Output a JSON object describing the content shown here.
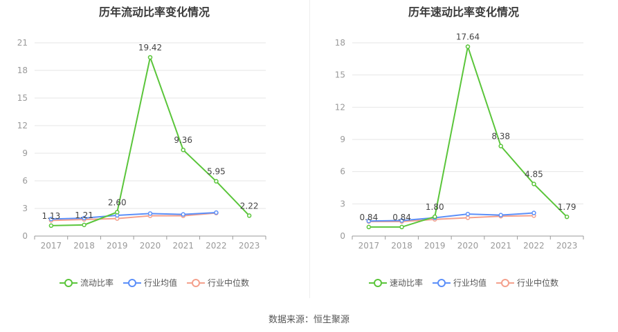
{
  "colors": {
    "primary": "#5ac53a",
    "average": "#5b8ff9",
    "median": "#f4a08c",
    "axis": "#999999",
    "grid": "#e6e6e6"
  },
  "source_text": "数据来源：恒生聚源",
  "legend_left": [
    "流动比率",
    "行业均值",
    "行业中位数"
  ],
  "legend_right": [
    "速动比率",
    "行业均值",
    "行业中位数"
  ],
  "chart_data": [
    {
      "type": "line",
      "title": "历年流动比率变化情况",
      "categories": [
        "2017",
        "2018",
        "2019",
        "2020",
        "2021",
        "2022",
        "2023"
      ],
      "ylim": [
        0,
        21
      ],
      "yticks": [
        "0",
        "3",
        "6",
        "9",
        "12",
        "15",
        "18",
        "21"
      ],
      "grid": true,
      "legend_position": "bottom",
      "series": [
        {
          "name": "流动比率",
          "values": [
            1.13,
            1.21,
            2.6,
            19.42,
            9.36,
            5.95,
            2.22
          ],
          "labels": [
            "1.13",
            "1.21",
            "2.60",
            "19.42",
            "9.36",
            "5.95",
            "2.22"
          ]
        },
        {
          "name": "行业均值",
          "values": [
            1.85,
            1.95,
            2.25,
            2.45,
            2.35,
            2.55,
            null
          ]
        },
        {
          "name": "行业中位数",
          "values": [
            1.7,
            1.8,
            1.9,
            2.2,
            2.2,
            2.5,
            null
          ]
        }
      ]
    },
    {
      "type": "line",
      "title": "历年速动比率变化情况",
      "categories": [
        "2017",
        "2018",
        "2019",
        "2020",
        "2021",
        "2022",
        "2023"
      ],
      "ylim": [
        0,
        18
      ],
      "yticks": [
        "0",
        "3",
        "6",
        "9",
        "12",
        "15",
        "18"
      ],
      "grid": true,
      "legend_position": "bottom",
      "series": [
        {
          "name": "速动比率",
          "values": [
            0.84,
            0.84,
            1.8,
            17.64,
            8.38,
            4.85,
            1.79
          ],
          "labels": [
            "0.84",
            "0.84",
            "1.80",
            "17.64",
            "8.38",
            "4.85",
            "1.79"
          ]
        },
        {
          "name": "行业均值",
          "values": [
            1.4,
            1.45,
            1.7,
            2.05,
            1.95,
            2.15,
            null
          ]
        },
        {
          "name": "行业中位数",
          "values": [
            1.35,
            1.35,
            1.55,
            1.7,
            1.85,
            1.9,
            null
          ]
        }
      ]
    }
  ]
}
